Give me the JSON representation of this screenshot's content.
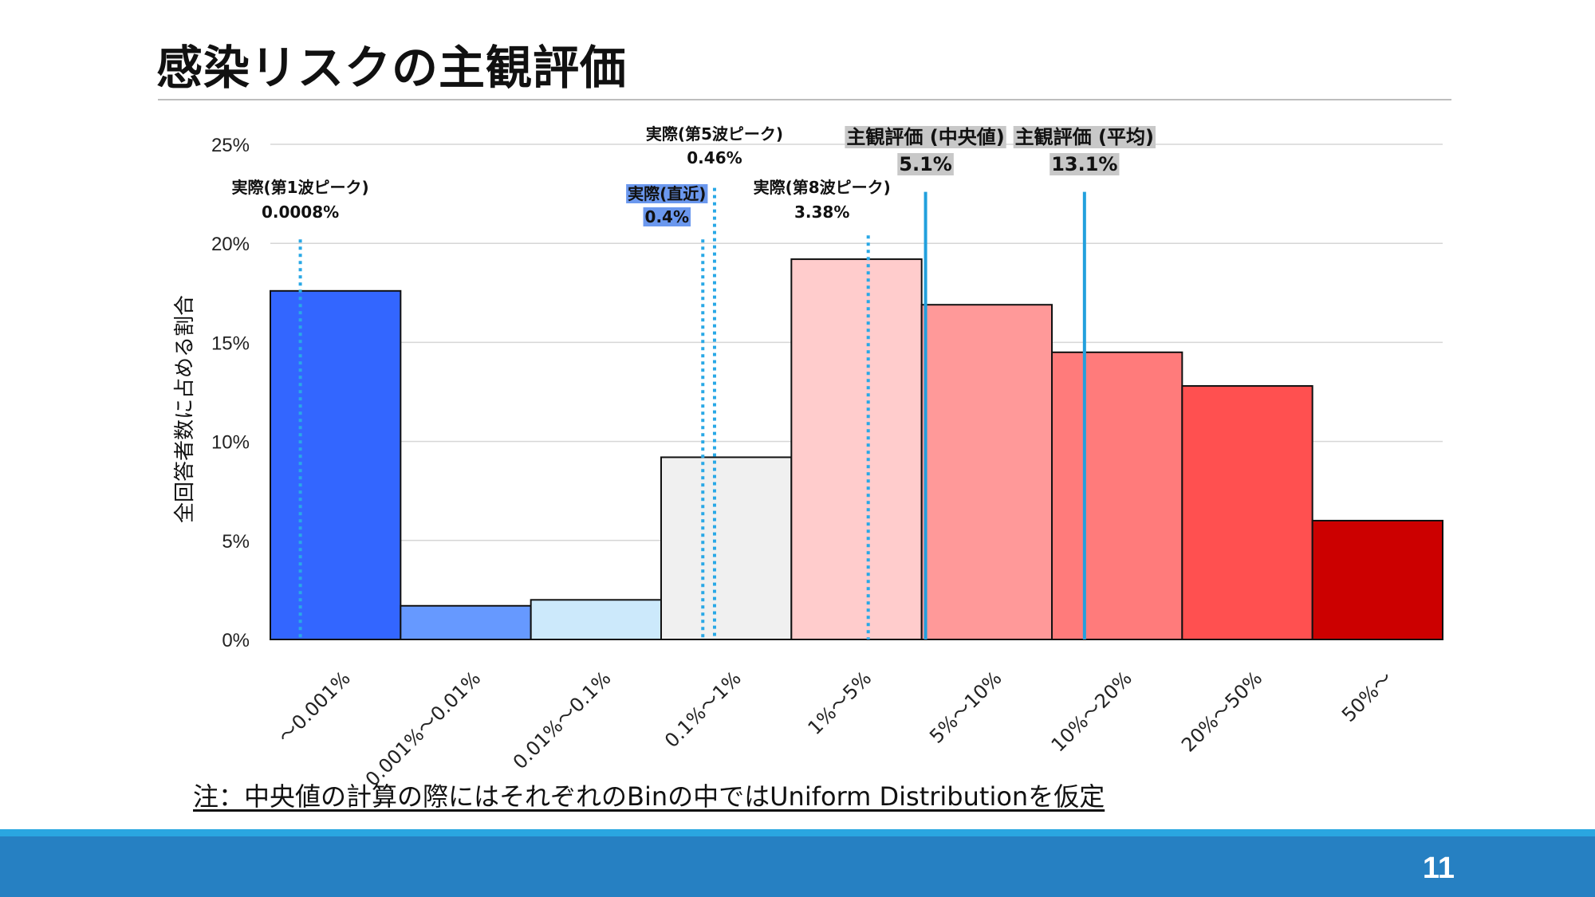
{
  "slide": {
    "title": "感染リスクの主観評価",
    "note": "注：中央値の計算の際にはそれぞれのBinの中ではUniform Distributionを仮定",
    "page_number": "11"
  },
  "colors": {
    "bar_colors": [
      "#3366ff",
      "#6699ff",
      "#cce9fb",
      "#f0f0f0",
      "#ffcccc",
      "#ff9999",
      "#ff7b7b",
      "#ff5050",
      "#cc0000"
    ],
    "actual_line": "#29a8e6",
    "subjective_line": "#22a0dd",
    "highlight_blue": "#6b98ee",
    "highlight_gray": "#c8c8c8",
    "footer": "#2680c2"
  },
  "chart_data": {
    "type": "bar",
    "ylabel": "全回答者数に占める割合",
    "xlabel": "",
    "ylim": [
      0,
      25
    ],
    "y_ticks": [
      "0%",
      "5%",
      "10%",
      "15%",
      "20%",
      "25%"
    ],
    "grid": true,
    "categories": [
      "〜0.001%",
      "0.001%〜0.01%",
      "0.01%〜0.1%",
      "0.1%〜1%",
      "1%〜5%",
      "5%〜10%",
      "10%〜20%",
      "20%〜50%",
      "50%〜"
    ],
    "values": [
      17.6,
      1.7,
      2.0,
      9.2,
      19.2,
      16.9,
      14.5,
      12.8,
      6.0
    ],
    "reference_lines": [
      {
        "label": "実際(第1波ピーク)",
        "value_text": "0.0008%",
        "position": 0.23,
        "style": "dotted",
        "top_pct": 20.2,
        "highlight": "none"
      },
      {
        "label": "実際(直近)",
        "value_text": "0.4%",
        "position": 3.32,
        "style": "dotted",
        "top_pct": 20.2,
        "highlight": "blue"
      },
      {
        "label": "実際(第5波ピーク)",
        "value_text": "0.46%",
        "position": 3.41,
        "style": "dotted",
        "top_pct": 22.8,
        "highlight": "none"
      },
      {
        "label": "実際(第8波ピーク)",
        "value_text": "3.38%",
        "position": 4.59,
        "style": "dotted",
        "top_pct": 20.4,
        "highlight": "none"
      },
      {
        "label": "主観評価 (中央値)",
        "value_text": "5.1%",
        "position": 5.03,
        "style": "solid",
        "top_pct": 22.6,
        "highlight": "gray"
      },
      {
        "label": "主観評価 (平均)",
        "value_text": "13.1%",
        "position": 6.25,
        "style": "solid",
        "top_pct": 22.6,
        "highlight": "gray"
      }
    ]
  }
}
